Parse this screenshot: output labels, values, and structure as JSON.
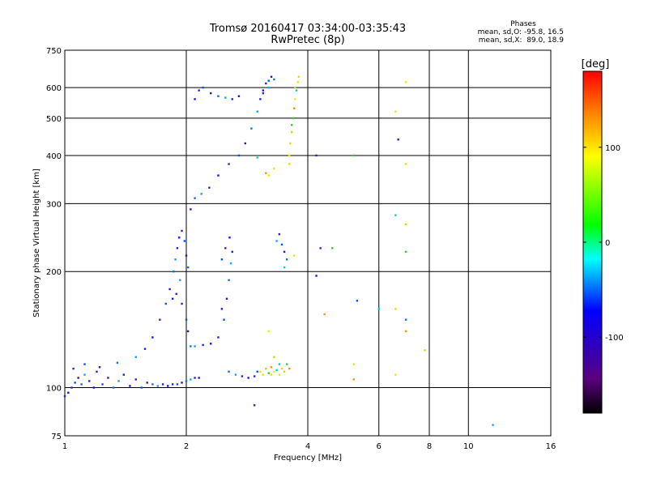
{
  "chart_data": {
    "type": "scatter",
    "title": "Tromsø 20160417 03:34:00-03:35:43",
    "subtitle": "RwPretec (8p)",
    "stats": {
      "heading": "Phases",
      "line_o": "mean, sd,O: -95.8, 16.5",
      "line_x": "mean, sd,X:  89.0, 18.9"
    },
    "xlabel": "Frequency [MHz]",
    "ylabel": "Stationary phase Virtual Height [km]",
    "x_scale": "log",
    "y_scale": "log",
    "xlim": [
      1,
      16
    ],
    "ylim": [
      75,
      750
    ],
    "x_ticks": [
      1,
      2,
      4,
      6,
      8,
      10,
      16
    ],
    "y_ticks": [
      75,
      100,
      200,
      300,
      400,
      500,
      600,
      750
    ],
    "grid": true,
    "colorbar": {
      "label": "[deg]",
      "range": [
        -180,
        180
      ],
      "ticks": [
        -100,
        0,
        100
      ]
    },
    "series": [
      {
        "role": "O-mode echoes (blue/purple)",
        "points": [
          [
            1.0,
            95
          ],
          [
            1.02,
            97
          ],
          [
            1.04,
            100
          ],
          [
            1.06,
            103
          ],
          [
            1.08,
            106
          ],
          [
            1.1,
            102
          ],
          [
            1.12,
            108
          ],
          [
            1.15,
            104
          ],
          [
            1.18,
            100
          ],
          [
            1.2,
            110
          ],
          [
            1.24,
            102
          ],
          [
            1.28,
            106
          ],
          [
            1.32,
            100
          ],
          [
            1.36,
            104
          ],
          [
            1.4,
            108
          ],
          [
            1.45,
            101
          ],
          [
            1.5,
            105
          ],
          [
            1.55,
            100
          ],
          [
            1.6,
            103
          ],
          [
            1.65,
            102
          ],
          [
            1.7,
            101
          ],
          [
            1.75,
            102
          ],
          [
            1.8,
            101
          ],
          [
            1.85,
            102
          ],
          [
            1.9,
            102
          ],
          [
            1.95,
            103
          ],
          [
            2.0,
            104
          ],
          [
            2.05,
            105
          ],
          [
            2.1,
            106
          ],
          [
            2.15,
            106
          ],
          [
            1.05,
            112
          ],
          [
            1.12,
            115
          ],
          [
            1.22,
            113
          ],
          [
            1.35,
            116
          ],
          [
            1.5,
            120
          ],
          [
            1.58,
            126
          ],
          [
            1.65,
            135
          ],
          [
            1.72,
            150
          ],
          [
            1.78,
            165
          ],
          [
            1.82,
            180
          ],
          [
            1.86,
            200
          ],
          [
            1.88,
            215
          ],
          [
            1.9,
            230
          ],
          [
            1.92,
            245
          ],
          [
            1.95,
            255
          ],
          [
            1.98,
            240
          ],
          [
            2.0,
            220
          ],
          [
            2.02,
            205
          ],
          [
            1.93,
            190
          ],
          [
            1.89,
            175
          ],
          [
            1.85,
            170
          ],
          [
            1.95,
            165
          ],
          [
            2.0,
            150
          ],
          [
            2.02,
            140
          ],
          [
            2.05,
            128
          ],
          [
            2.1,
            128
          ],
          [
            2.2,
            129
          ],
          [
            2.3,
            130
          ],
          [
            2.4,
            135
          ],
          [
            2.48,
            150
          ],
          [
            2.52,
            170
          ],
          [
            2.55,
            190
          ],
          [
            2.58,
            210
          ],
          [
            2.6,
            225
          ],
          [
            2.56,
            245
          ],
          [
            2.5,
            230
          ],
          [
            2.45,
            215
          ],
          [
            2.45,
            160
          ],
          [
            2.55,
            110
          ],
          [
            2.65,
            108
          ],
          [
            2.75,
            107
          ],
          [
            2.85,
            106
          ],
          [
            2.95,
            107
          ],
          [
            3.0,
            110
          ],
          [
            2.05,
            290
          ],
          [
            2.1,
            310
          ],
          [
            2.18,
            318
          ],
          [
            2.28,
            330
          ],
          [
            2.4,
            355
          ],
          [
            2.55,
            380
          ],
          [
            2.7,
            400
          ],
          [
            2.8,
            430
          ],
          [
            2.9,
            470
          ],
          [
            3.0,
            520
          ],
          [
            3.05,
            560
          ],
          [
            3.1,
            590
          ],
          [
            3.15,
            615
          ],
          [
            3.2,
            625
          ],
          [
            3.25,
            640
          ],
          [
            3.3,
            630
          ],
          [
            3.2,
            600
          ],
          [
            3.1,
            580
          ],
          [
            2.1,
            560
          ],
          [
            2.15,
            590
          ],
          [
            2.2,
            600
          ],
          [
            2.3,
            580
          ],
          [
            2.4,
            570
          ],
          [
            2.5,
            565
          ],
          [
            2.6,
            560
          ],
          [
            2.7,
            570
          ],
          [
            3.4,
            250
          ],
          [
            3.45,
            235
          ],
          [
            3.5,
            225
          ],
          [
            3.55,
            215
          ],
          [
            3.35,
            240
          ],
          [
            4.2,
            400
          ],
          [
            4.2,
            195
          ],
          [
            4.3,
            230
          ],
          [
            5.3,
            168
          ],
          [
            6.7,
            440
          ],
          [
            7.0,
            150
          ],
          [
            11.5,
            80
          ],
          [
            2.95,
            90
          ]
        ]
      },
      {
        "role": "X-mode echoes (green/yellow/orange)",
        "points": [
          [
            3.05,
            110
          ],
          [
            3.1,
            108
          ],
          [
            3.15,
            112
          ],
          [
            3.2,
            109
          ],
          [
            3.25,
            113
          ],
          [
            3.3,
            110
          ],
          [
            3.35,
            111
          ],
          [
            3.4,
            108
          ],
          [
            3.45,
            112
          ],
          [
            3.5,
            110
          ],
          [
            3.55,
            115
          ],
          [
            3.6,
            112
          ],
          [
            3.25,
            108
          ],
          [
            3.4,
            115
          ],
          [
            3.6,
            400
          ],
          [
            3.62,
            430
          ],
          [
            3.65,
            460
          ],
          [
            3.68,
            500
          ],
          [
            3.7,
            530
          ],
          [
            3.72,
            560
          ],
          [
            3.75,
            590
          ],
          [
            3.78,
            620
          ],
          [
            3.8,
            640
          ],
          [
            3.72,
            600
          ],
          [
            3.65,
            480
          ],
          [
            3.15,
            360
          ],
          [
            3.3,
            370
          ],
          [
            3.5,
            205
          ],
          [
            3.7,
            220
          ],
          [
            3.6,
            380
          ],
          [
            3.3,
            120
          ],
          [
            5.2,
            400
          ],
          [
            5.2,
            105
          ],
          [
            5.2,
            115
          ],
          [
            6.0,
            160
          ],
          [
            7.0,
            620
          ],
          [
            7.0,
            380
          ],
          [
            7.0,
            265
          ],
          [
            7.0,
            225
          ],
          [
            7.0,
            140
          ],
          [
            6.6,
            520
          ],
          [
            6.6,
            280
          ],
          [
            6.6,
            108
          ],
          [
            6.6,
            160
          ],
          [
            7.8,
            125
          ],
          [
            4.6,
            230
          ],
          [
            4.4,
            155
          ],
          [
            3.2,
            140
          ],
          [
            3.0,
            395
          ],
          [
            3.2,
            355
          ]
        ]
      }
    ]
  }
}
